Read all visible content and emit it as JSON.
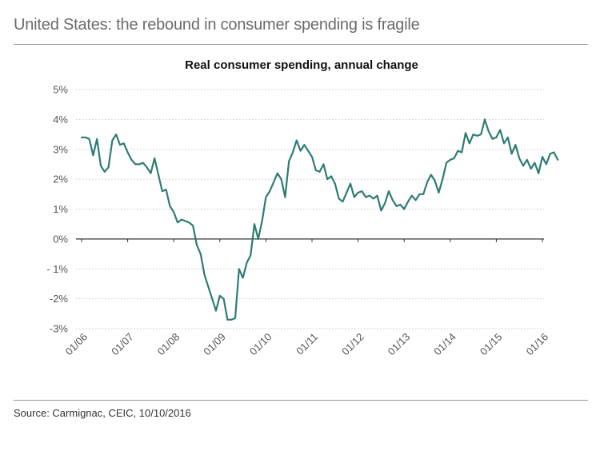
{
  "header": {
    "title": "United States: the rebound in consumer spending is fragile"
  },
  "footer": {
    "source": "Source: Carmignac, CEIC, 10/10/2016"
  },
  "colors": {
    "line": "#2e7b74",
    "grid": "#c8c8c8",
    "axis": "#333333"
  },
  "chart_data": {
    "type": "line",
    "title": "Real consumer spending, annual change",
    "xlabel": "",
    "ylabel": "",
    "ylim": [
      -3,
      5
    ],
    "y_ticks": [
      5,
      4,
      3,
      2,
      1,
      0,
      -1,
      -2,
      -3
    ],
    "y_tick_labels": [
      "5%",
      "4%",
      "3%",
      "2%",
      "1%",
      "0%",
      "- 1%",
      "-2%",
      "-3%"
    ],
    "x_tick_labels": [
      "01/06",
      "01/07",
      "01/08",
      "01/09",
      "01/10",
      "01/11",
      "01/12",
      "01/13",
      "01/14",
      "01/15",
      "01/16"
    ],
    "grid": true,
    "series": [
      {
        "name": "Real consumer spending",
        "unit": "%",
        "start": "2006-01",
        "frequency": "monthly",
        "values": [
          3.4,
          3.4,
          3.35,
          2.8,
          3.35,
          2.45,
          2.25,
          2.4,
          3.3,
          3.5,
          3.15,
          3.2,
          2.9,
          2.65,
          2.5,
          2.5,
          2.55,
          2.4,
          2.2,
          2.7,
          2.15,
          1.6,
          1.65,
          1.1,
          0.9,
          0.55,
          0.65,
          0.6,
          0.55,
          0.45,
          -0.2,
          -0.5,
          -1.2,
          -1.6,
          -2.0,
          -2.4,
          -1.9,
          -2.0,
          -2.7,
          -2.7,
          -2.65,
          -1.0,
          -1.3,
          -0.8,
          -0.55,
          0.5,
          0.0,
          0.6,
          1.4,
          1.6,
          1.9,
          2.2,
          2.0,
          1.4,
          2.6,
          2.9,
          3.3,
          2.95,
          3.15,
          2.95,
          2.75,
          2.3,
          2.25,
          2.5,
          2.0,
          2.1,
          1.85,
          1.35,
          1.25,
          1.55,
          1.85,
          1.4,
          1.55,
          1.6,
          1.4,
          1.45,
          1.35,
          1.45,
          0.95,
          1.2,
          1.6,
          1.3,
          1.1,
          1.15,
          1.0,
          1.25,
          1.45,
          1.3,
          1.5,
          1.5,
          1.9,
          2.15,
          1.95,
          1.55,
          2.0,
          2.55,
          2.65,
          2.7,
          2.95,
          2.9,
          3.55,
          3.2,
          3.5,
          3.45,
          3.5,
          4.0,
          3.6,
          3.35,
          3.4,
          3.65,
          3.2,
          3.4,
          2.85,
          3.15,
          2.7,
          2.45,
          2.65,
          2.35,
          2.55,
          2.2,
          2.75,
          2.5,
          2.85,
          2.9,
          2.65
        ]
      }
    ]
  }
}
